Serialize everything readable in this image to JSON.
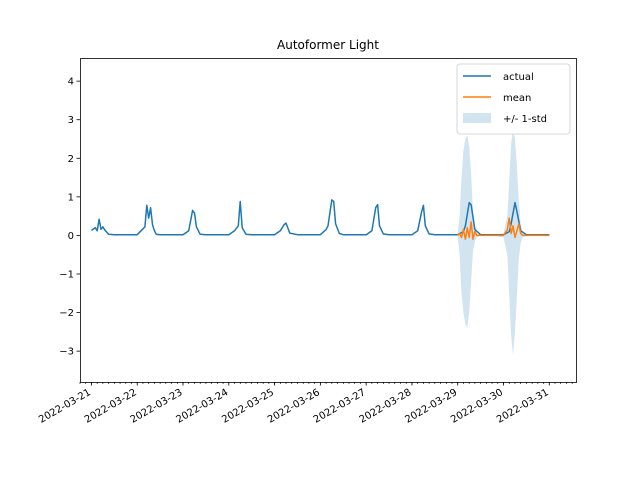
{
  "chart_data": {
    "type": "line",
    "title": "Autoformer Light",
    "xlabel": "",
    "ylabel": "",
    "ylim": [
      -3.8,
      4.6
    ],
    "xlim": [
      "2022-03-20T18:00",
      "2022-03-31T14:00"
    ],
    "grid": false,
    "legend": {
      "position": "top-right",
      "entries": [
        "actual",
        "mean",
        "+/- 1-std"
      ]
    },
    "y_ticks": [
      -3,
      -2,
      -1,
      0,
      1,
      2,
      3,
      4
    ],
    "x_ticks": [
      "2022-03-21",
      "2022-03-22",
      "2022-03-23",
      "2022-03-24",
      "2022-03-25",
      "2022-03-26",
      "2022-03-27",
      "2022-03-28",
      "2022-03-29",
      "2022-03-30",
      "2022-03-31"
    ],
    "colors": {
      "actual": "#1f77b4",
      "mean": "#ff7f0e",
      "band": "#1f77b4"
    },
    "series": [
      {
        "name": "actual",
        "x": [
          "2022-03-21T00:00",
          "2022-03-21T02:00",
          "2022-03-21T03:00",
          "2022-03-21T04:00",
          "2022-03-21T05:00",
          "2022-03-21T06:00",
          "2022-03-21T07:00",
          "2022-03-21T09:00",
          "2022-03-21T12:00",
          "2022-03-22T00:00",
          "2022-03-22T02:00",
          "2022-03-22T04:00",
          "2022-03-22T05:00",
          "2022-03-22T06:00",
          "2022-03-22T07:00",
          "2022-03-22T08:00",
          "2022-03-22T09:00",
          "2022-03-22T10:00",
          "2022-03-22T12:00",
          "2022-03-23T00:00",
          "2022-03-23T03:00",
          "2022-03-23T05:00",
          "2022-03-23T06:00",
          "2022-03-23T07:00",
          "2022-03-23T09:00",
          "2022-03-23T12:00",
          "2022-03-24T00:00",
          "2022-03-24T03:00",
          "2022-03-24T05:00",
          "2022-03-24T06:00",
          "2022-03-24T07:00",
          "2022-03-24T09:00",
          "2022-03-24T12:00",
          "2022-03-25T00:00",
          "2022-03-25T03:00",
          "2022-03-25T05:00",
          "2022-03-25T06:00",
          "2022-03-25T08:00",
          "2022-03-25T12:00",
          "2022-03-26T00:00",
          "2022-03-26T03:00",
          "2022-03-26T04:00",
          "2022-03-26T06:00",
          "2022-03-26T07:00",
          "2022-03-26T08:00",
          "2022-03-26T10:00",
          "2022-03-26T12:00",
          "2022-03-27T00:00",
          "2022-03-27T03:00",
          "2022-03-27T05:00",
          "2022-03-27T06:00",
          "2022-03-27T07:00",
          "2022-03-27T09:00",
          "2022-03-27T12:00",
          "2022-03-28T00:00",
          "2022-03-28T03:00",
          "2022-03-28T05:00",
          "2022-03-28T06:00",
          "2022-03-28T07:00",
          "2022-03-28T09:00",
          "2022-03-28T12:00",
          "2022-03-29T00:00",
          "2022-03-29T03:00",
          "2022-03-29T04:00",
          "2022-03-29T06:00",
          "2022-03-29T07:00",
          "2022-03-29T09:00",
          "2022-03-29T12:00",
          "2022-03-30T00:00",
          "2022-03-30T03:00",
          "2022-03-30T04:00",
          "2022-03-30T06:00",
          "2022-03-30T07:00",
          "2022-03-30T09:00",
          "2022-03-30T12:00",
          "2022-03-31T00:00"
        ],
        "values": [
          0.13,
          0.2,
          0.12,
          0.42,
          0.16,
          0.22,
          0.14,
          0.03,
          0.02,
          0.02,
          0.12,
          0.22,
          0.78,
          0.45,
          0.72,
          0.28,
          0.12,
          0.03,
          0.02,
          0.02,
          0.12,
          0.65,
          0.58,
          0.22,
          0.03,
          0.02,
          0.02,
          0.12,
          0.25,
          0.88,
          0.2,
          0.03,
          0.02,
          0.02,
          0.12,
          0.28,
          0.32,
          0.06,
          0.02,
          0.02,
          0.15,
          0.25,
          0.92,
          0.88,
          0.3,
          0.05,
          0.02,
          0.02,
          0.12,
          0.72,
          0.8,
          0.25,
          0.04,
          0.02,
          0.02,
          0.12,
          0.6,
          0.78,
          0.25,
          0.04,
          0.02,
          0.02,
          0.1,
          0.25,
          0.85,
          0.8,
          0.15,
          0.02,
          0.02,
          0.1,
          0.3,
          0.85,
          0.62,
          0.12,
          0.02,
          0.02
        ]
      },
      {
        "name": "mean",
        "x": [
          "2022-03-29T00:00",
          "2022-03-29T01:00",
          "2022-03-29T02:00",
          "2022-03-29T03:00",
          "2022-03-29T04:00",
          "2022-03-29T05:00",
          "2022-03-29T06:00",
          "2022-03-29T07:00",
          "2022-03-29T08:00",
          "2022-03-29T09:00",
          "2022-03-29T10:00",
          "2022-03-29T12:00",
          "2022-03-29T18:00",
          "2022-03-30T00:00",
          "2022-03-30T02:00",
          "2022-03-30T03:00",
          "2022-03-30T04:00",
          "2022-03-30T05:00",
          "2022-03-30T06:00",
          "2022-03-30T07:00",
          "2022-03-30T08:00",
          "2022-03-30T09:00",
          "2022-03-30T10:00",
          "2022-03-30T12:00",
          "2022-03-30T18:00",
          "2022-03-31T00:00"
        ],
        "values": [
          0.0,
          0.05,
          -0.05,
          0.15,
          -0.1,
          0.2,
          -0.05,
          0.35,
          -0.1,
          0.1,
          0.0,
          0.0,
          0.0,
          0.0,
          0.15,
          0.45,
          0.05,
          0.25,
          -0.05,
          0.12,
          0.3,
          0.05,
          0.0,
          0.0,
          0.0,
          0.0
        ]
      }
    ],
    "band": {
      "name": "+/- 1-std",
      "x": [
        "2022-03-29T00:00",
        "2022-03-29T01:00",
        "2022-03-29T02:00",
        "2022-03-29T03:00",
        "2022-03-29T04:00",
        "2022-03-29T05:00",
        "2022-03-29T06:00",
        "2022-03-29T07:00",
        "2022-03-29T08:00",
        "2022-03-29T09:00",
        "2022-03-29T10:00",
        "2022-03-29T12:00",
        "2022-03-29T18:00",
        "2022-03-30T00:00",
        "2022-03-30T02:00",
        "2022-03-30T03:00",
        "2022-03-30T04:00",
        "2022-03-30T05:00",
        "2022-03-30T06:00",
        "2022-03-30T07:00",
        "2022-03-30T08:00",
        "2022-03-30T09:00",
        "2022-03-30T10:00",
        "2022-03-30T12:00",
        "2022-03-30T18:00",
        "2022-03-31T00:00"
      ],
      "lower": [
        -0.05,
        -0.5,
        -1.5,
        -2.0,
        -2.3,
        -2.4,
        -2.0,
        -1.2,
        -0.4,
        -0.15,
        -0.05,
        0.0,
        0.0,
        -0.05,
        -0.5,
        -1.5,
        -2.6,
        -3.1,
        -2.5,
        -1.6,
        -0.6,
        -0.2,
        -0.05,
        0.0,
        0.0,
        0.0
      ],
      "upper": [
        0.05,
        0.5,
        1.5,
        2.2,
        2.5,
        2.6,
        2.3,
        1.6,
        0.6,
        0.2,
        0.05,
        0.0,
        0.0,
        0.05,
        0.5,
        1.4,
        2.4,
        2.7,
        2.5,
        1.8,
        0.9,
        0.3,
        0.05,
        0.0,
        0.0,
        0.0
      ]
    }
  }
}
